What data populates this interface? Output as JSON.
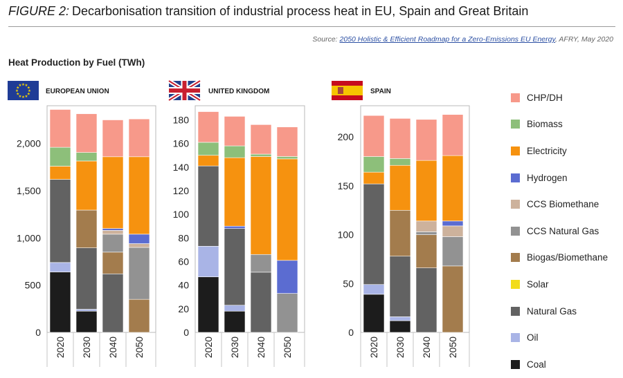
{
  "figure": {
    "label": "FIGURE 2:",
    "title": "Decarbonisation transition of industrial process heat in EU, Spain and Great Britain",
    "source_prefix": "Source: ",
    "source_link": "2050 Holistic & Efficient Roadmap for a Zero-Emissions EU Energy",
    "source_suffix": ", AFRY, May 2020",
    "subtitle": "Heat Production by Fuel (TWh)"
  },
  "colors": {
    "CHP/DH": "#f7998a",
    "Biomass": "#8dbf7a",
    "Electricity": "#f6920f",
    "Hydrogen": "#5b6cd1",
    "CCS Biomethane": "#cdb29c",
    "CCS Natural Gas": "#929292",
    "Biogas/Biomethane": "#a37c4d",
    "Solar": "#f2dc1a",
    "Natural Gas": "#626262",
    "Oil": "#a9b4e6",
    "Coal": "#1c1c1c"
  },
  "legend": [
    "CHP/DH",
    "Biomass",
    "Electricity",
    "Hydrogen",
    "CCS Biomethane",
    "CCS Natural Gas",
    "Biogas/Biomethane",
    "Solar",
    "Natural Gas",
    "Oil",
    "Coal"
  ],
  "chart_data": [
    {
      "type": "bar",
      "stacked": true,
      "title": "EUROPEAN UNION",
      "flag": "eu",
      "categories": [
        "2020",
        "2030",
        "2040",
        "2050"
      ],
      "ylim": [
        0,
        2400
      ],
      "yticks": [
        0,
        500,
        1000,
        1500,
        2000
      ],
      "ytick_labels": [
        "0",
        "500",
        "1,000",
        "1,500",
        "2,000"
      ],
      "series": [
        {
          "name": "Coal",
          "values": [
            640,
            225,
            0,
            0
          ]
        },
        {
          "name": "Oil",
          "values": [
            100,
            20,
            0,
            0
          ]
        },
        {
          "name": "Natural Gas",
          "values": [
            880,
            650,
            620,
            0
          ]
        },
        {
          "name": "Solar",
          "values": [
            0,
            0,
            0,
            0
          ]
        },
        {
          "name": "Biogas/Biomethane",
          "values": [
            0,
            400,
            230,
            350
          ]
        },
        {
          "name": "CCS Natural Gas",
          "values": [
            0,
            0,
            190,
            550
          ]
        },
        {
          "name": "CCS Biomethane",
          "values": [
            0,
            0,
            40,
            40
          ]
        },
        {
          "name": "Hydrogen",
          "values": [
            0,
            0,
            20,
            100
          ]
        },
        {
          "name": "Electricity",
          "values": [
            140,
            520,
            760,
            820
          ]
        },
        {
          "name": "Biomass",
          "values": [
            200,
            90,
            0,
            0
          ]
        },
        {
          "name": "CHP/DH",
          "values": [
            400,
            410,
            390,
            400
          ]
        }
      ]
    },
    {
      "type": "bar",
      "stacked": true,
      "title": "UNITED KINGDOM",
      "flag": "uk",
      "categories": [
        "2020",
        "2030",
        "2040",
        "2050"
      ],
      "ylim": [
        0,
        192
      ],
      "yticks": [
        0,
        20,
        40,
        60,
        80,
        100,
        120,
        140,
        160,
        180
      ],
      "ytick_labels": [
        "0",
        "20",
        "40",
        "60",
        "80",
        "100",
        "120",
        "140",
        "160",
        "180"
      ],
      "series": [
        {
          "name": "Coal",
          "values": [
            47,
            18,
            0,
            0
          ]
        },
        {
          "name": "Oil",
          "values": [
            26,
            5,
            0,
            0
          ]
        },
        {
          "name": "Natural Gas",
          "values": [
            68,
            65,
            51,
            0
          ]
        },
        {
          "name": "Solar",
          "values": [
            0,
            0,
            0,
            0
          ]
        },
        {
          "name": "Biogas/Biomethane",
          "values": [
            0,
            0,
            0,
            0
          ]
        },
        {
          "name": "CCS Natural Gas",
          "values": [
            0,
            0,
            15,
            33
          ]
        },
        {
          "name": "CCS Biomethane",
          "values": [
            0,
            0,
            0,
            0
          ]
        },
        {
          "name": "Hydrogen",
          "values": [
            0,
            2,
            0,
            28
          ]
        },
        {
          "name": "Electricity",
          "values": [
            9,
            58,
            83,
            86
          ]
        },
        {
          "name": "Biomass",
          "values": [
            11,
            10,
            2,
            2
          ]
        },
        {
          "name": "CHP/DH",
          "values": [
            26,
            25,
            25,
            25
          ]
        }
      ]
    },
    {
      "type": "bar",
      "stacked": true,
      "title": "SPAIN",
      "flag": "es",
      "categories": [
        "2020",
        "2030",
        "2040",
        "2050"
      ],
      "ylim": [
        0,
        232
      ],
      "yticks": [
        0,
        50,
        100,
        150,
        200
      ],
      "ytick_labels": [
        "0",
        "50",
        "100",
        "150",
        "200"
      ],
      "series": [
        {
          "name": "Coal",
          "values": [
            39,
            12,
            0,
            0
          ]
        },
        {
          "name": "Oil",
          "values": [
            10,
            4,
            0,
            0
          ]
        },
        {
          "name": "Natural Gas",
          "values": [
            103,
            62,
            66,
            0
          ]
        },
        {
          "name": "Solar",
          "values": [
            0,
            0,
            0,
            0
          ]
        },
        {
          "name": "Biogas/Biomethane",
          "values": [
            0,
            47,
            34,
            68
          ]
        },
        {
          "name": "CCS Natural Gas",
          "values": [
            0,
            0,
            3,
            30
          ]
        },
        {
          "name": "CCS Biomethane",
          "values": [
            0,
            0,
            11,
            11
          ]
        },
        {
          "name": "Hydrogen",
          "values": [
            0,
            0,
            0,
            5
          ]
        },
        {
          "name": "Electricity",
          "values": [
            12,
            46,
            62,
            67
          ]
        },
        {
          "name": "Biomass",
          "values": [
            16,
            7,
            0,
            0
          ]
        },
        {
          "name": "CHP/DH",
          "values": [
            42,
            41,
            42,
            42
          ]
        }
      ]
    }
  ]
}
